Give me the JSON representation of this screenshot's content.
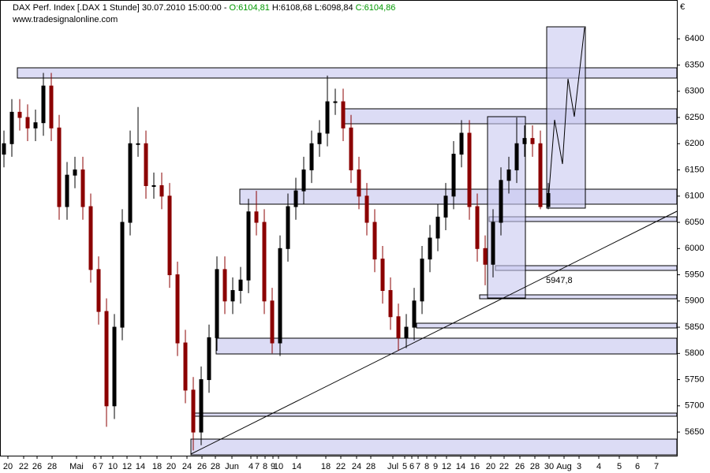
{
  "header": {
    "instrument": "DAX Perf. Index [.DAX  1 Stunde] 30.07.2010 15:00:00 -",
    "open": "O:6104,81",
    "high_low": "H:6108,68 L:6098,84",
    "close": "C:6104,86",
    "source": "www.tradesignalonline.com"
  },
  "chart_data": {
    "type": "candlestick",
    "currency": "€",
    "annotation": "5947,8",
    "up_color": "#000000",
    "down_color": "#8b0000",
    "x": [
      0,
      1,
      2,
      3,
      4,
      5,
      6,
      7,
      8,
      9,
      10,
      11,
      12,
      13,
      14,
      15,
      16,
      17,
      18,
      19,
      20,
      21,
      22,
      23,
      24,
      25,
      26,
      27,
      28,
      29,
      30,
      31,
      32,
      33,
      34,
      35,
      36,
      37,
      38,
      39,
      40,
      41,
      42,
      43,
      44,
      45,
      46,
      47,
      48,
      49,
      50,
      51,
      52,
      53,
      54,
      55,
      56,
      57,
      58,
      59,
      60,
      61,
      62,
      63,
      64,
      65,
      66,
      67,
      68,
      69
    ],
    "open": [
      6180,
      6200,
      6260,
      6250,
      6230,
      6240,
      6310,
      6230,
      6080,
      6140,
      6150,
      6080,
      5960,
      5880,
      5700,
      5850,
      6050,
      6200,
      6200,
      6120,
      6120,
      6100,
      5950,
      5820,
      5730,
      5650,
      5750,
      5830,
      5960,
      5900,
      5920,
      5940,
      6070,
      6050,
      5900,
      5820,
      6000,
      6080,
      6110,
      6150,
      6200,
      6220,
      6280,
      6280,
      6230,
      6150,
      6100,
      6050,
      5980,
      5920,
      5870,
      5830,
      5850,
      5900,
      5980,
      6020,
      6060,
      6100,
      6180,
      6220,
      6080,
      6000,
      5970,
      6050,
      6130,
      6150,
      6200,
      6210,
      6200,
      6080
    ],
    "high": [
      6225,
      6285,
      6285,
      6275,
      6265,
      6335,
      6335,
      6255,
      6165,
      6175,
      6175,
      6105,
      5985,
      5905,
      5875,
      6075,
      6225,
      6270,
      6225,
      6145,
      6145,
      6125,
      5975,
      5845,
      5755,
      5775,
      5855,
      5985,
      5985,
      5945,
      5965,
      6095,
      6110,
      6075,
      5925,
      6025,
      6105,
      6135,
      6175,
      6225,
      6245,
      6330,
      6305,
      6305,
      6255,
      6175,
      6125,
      6075,
      6005,
      5945,
      5895,
      5875,
      5925,
      6005,
      6045,
      6085,
      6125,
      6205,
      6245,
      6245,
      6105,
      6025,
      6075,
      6155,
      6175,
      6250,
      6235,
      6235,
      6225,
      6125
    ],
    "low": [
      6155,
      6175,
      6225,
      6205,
      6205,
      6215,
      6205,
      6055,
      6055,
      6115,
      6055,
      5935,
      5855,
      5660,
      5675,
      5825,
      6025,
      6175,
      6095,
      6095,
      6075,
      5925,
      5795,
      5705,
      5615,
      5625,
      5725,
      5805,
      5875,
      5875,
      5895,
      5915,
      6025,
      5875,
      5800,
      5795,
      5975,
      6055,
      6085,
      6125,
      6175,
      6195,
      6255,
      6205,
      6125,
      6075,
      6025,
      5955,
      5895,
      5845,
      5805,
      5810,
      5825,
      5875,
      5955,
      5995,
      6035,
      6075,
      6155,
      6055,
      5975,
      5930,
      5945,
      6025,
      6105,
      6125,
      6175,
      6175,
      6075,
      6075
    ],
    "close": [
      6200,
      6260,
      6250,
      6230,
      6240,
      6310,
      6230,
      6080,
      6140,
      6150,
      6080,
      5960,
      5880,
      5700,
      5850,
      6050,
      6200,
      6200,
      6120,
      6120,
      6100,
      5950,
      5820,
      5730,
      5650,
      5750,
      5830,
      5960,
      5900,
      5920,
      5940,
      6070,
      6050,
      5900,
      5820,
      6000,
      6080,
      6110,
      6150,
      6200,
      6220,
      6280,
      6280,
      6230,
      6150,
      6100,
      6050,
      5980,
      5920,
      5870,
      5830,
      5850,
      5900,
      5980,
      6020,
      6060,
      6100,
      6180,
      6220,
      6080,
      6000,
      5970,
      6050,
      6130,
      6150,
      6200,
      6210,
      6200,
      6080,
      6105
    ],
    "xlim": [
      -0.5,
      85.3
    ],
    "xticks": [
      {
        "value": 0.5,
        "label": "20"
      },
      {
        "value": 2.5,
        "label": "22"
      },
      {
        "value": 4.2,
        "label": "26"
      },
      {
        "value": 6.1,
        "label": "28"
      },
      {
        "value": 9.2,
        "label": "Mai"
      },
      {
        "value": 11.5,
        "label": "6"
      },
      {
        "value": 12.3,
        "label": "7"
      },
      {
        "value": 13.8,
        "label": "10"
      },
      {
        "value": 15.6,
        "label": "12"
      },
      {
        "value": 17.3,
        "label": "14"
      },
      {
        "value": 19.4,
        "label": "18"
      },
      {
        "value": 21.2,
        "label": "20"
      },
      {
        "value": 23.2,
        "label": "24"
      },
      {
        "value": 25.1,
        "label": "26"
      },
      {
        "value": 26.8,
        "label": "28"
      },
      {
        "value": 28.9,
        "label": "Jun"
      },
      {
        "value": 31.3,
        "label": "4"
      },
      {
        "value": 32.1,
        "label": "7"
      },
      {
        "value": 33.1,
        "label": "8"
      },
      {
        "value": 34.1,
        "label": "9"
      },
      {
        "value": 34.8,
        "label": "10"
      },
      {
        "value": 37.1,
        "label": "14"
      },
      {
        "value": 40.8,
        "label": "18"
      },
      {
        "value": 42.7,
        "label": "22"
      },
      {
        "value": 44.7,
        "label": "24"
      },
      {
        "value": 46.5,
        "label": "28"
      },
      {
        "value": 49.3,
        "label": "Jul"
      },
      {
        "value": 50.8,
        "label": "5"
      },
      {
        "value": 51.7,
        "label": "6"
      },
      {
        "value": 52.5,
        "label": "7"
      },
      {
        "value": 53.6,
        "label": "8"
      },
      {
        "value": 54.7,
        "label": "9"
      },
      {
        "value": 56.1,
        "label": "12"
      },
      {
        "value": 57.9,
        "label": "14"
      },
      {
        "value": 59.7,
        "label": "16"
      },
      {
        "value": 61.7,
        "label": "20"
      },
      {
        "value": 63.4,
        "label": "22"
      },
      {
        "value": 65.4,
        "label": "26"
      },
      {
        "value": 67.3,
        "label": "28"
      },
      {
        "value": 69.1,
        "label": "30"
      },
      {
        "value": 71,
        "label": "Aug"
      },
      {
        "value": 72.9,
        "label": "3"
      },
      {
        "value": 75.4,
        "label": "4"
      },
      {
        "value": 78,
        "label": "5"
      },
      {
        "value": 80.3,
        "label": "6"
      },
      {
        "value": 82.7,
        "label": "7"
      }
    ],
    "ylim": [
      5605,
      6447
    ],
    "yticks": [
      5650,
      5700,
      5750,
      5800,
      5850,
      5900,
      5950,
      6000,
      6050,
      6100,
      6150,
      6200,
      6250,
      6300,
      6350,
      6400
    ]
  }
}
